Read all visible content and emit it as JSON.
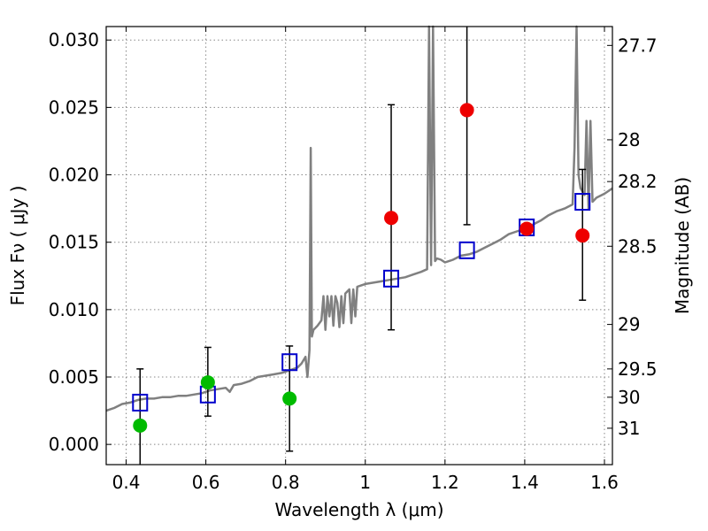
{
  "chart_data": {
    "type": "scatter",
    "xlabel": "Wavelength  λ (μm)",
    "ylabel": "Flux  Fν  ( μJy )",
    "ylabel_right": "Magnitude (AB)",
    "xlim": [
      0.35,
      1.62
    ],
    "ylim": [
      -0.0015,
      0.031
    ],
    "grid": true,
    "x_ticks": [
      {
        "value": 0.4,
        "label": "0.4"
      },
      {
        "value": 0.6,
        "label": "0.6"
      },
      {
        "value": 0.8,
        "label": "0.8"
      },
      {
        "value": 1.0,
        "label": "1"
      },
      {
        "value": 1.2,
        "label": "1.2"
      },
      {
        "value": 1.4,
        "label": "1.4"
      },
      {
        "value": 1.6,
        "label": "1.6"
      }
    ],
    "y_ticks": [
      {
        "value": 0.0,
        "label": "0.000"
      },
      {
        "value": 0.005,
        "label": "0.005"
      },
      {
        "value": 0.01,
        "label": "0.010"
      },
      {
        "value": 0.015,
        "label": "0.015"
      },
      {
        "value": 0.02,
        "label": "0.020"
      },
      {
        "value": 0.025,
        "label": "0.025"
      },
      {
        "value": 0.03,
        "label": "0.030"
      }
    ],
    "right_ticks": [
      {
        "flux": 0.0296,
        "label": "27.7"
      },
      {
        "flux": 0.0226,
        "label": "28"
      },
      {
        "flux": 0.0195,
        "label": "28.2"
      },
      {
        "flux": 0.0147,
        "label": "28.5"
      },
      {
        "flux": 0.0089,
        "label": "29"
      },
      {
        "flux": 0.0056,
        "label": "29.5"
      },
      {
        "flux": 0.0035,
        "label": "30"
      },
      {
        "flux": 0.0012,
        "label": "31"
      }
    ],
    "colors": {
      "spectrum": "#808080",
      "green": "#00bb00",
      "red": "#ee0000",
      "model_square": "#0000cc",
      "errorbar": "#000000",
      "grid": "#888888"
    },
    "model_spectrum": [
      [
        0.35,
        0.0025
      ],
      [
        0.37,
        0.0027
      ],
      [
        0.39,
        0.003
      ],
      [
        0.41,
        0.0031
      ],
      [
        0.43,
        0.0033
      ],
      [
        0.45,
        0.0034
      ],
      [
        0.47,
        0.0034
      ],
      [
        0.49,
        0.0035
      ],
      [
        0.51,
        0.0035
      ],
      [
        0.53,
        0.0036
      ],
      [
        0.55,
        0.0036
      ],
      [
        0.57,
        0.0037
      ],
      [
        0.59,
        0.0038
      ],
      [
        0.61,
        0.004
      ],
      [
        0.63,
        0.0041
      ],
      [
        0.65,
        0.0042
      ],
      [
        0.66,
        0.0039
      ],
      [
        0.67,
        0.0044
      ],
      [
        0.69,
        0.0045
      ],
      [
        0.71,
        0.0047
      ],
      [
        0.73,
        0.005
      ],
      [
        0.75,
        0.0051
      ],
      [
        0.77,
        0.0052
      ],
      [
        0.79,
        0.0053
      ],
      [
        0.81,
        0.0055
      ],
      [
        0.83,
        0.0057
      ],
      [
        0.84,
        0.006
      ],
      [
        0.85,
        0.0065
      ],
      [
        0.855,
        0.005
      ],
      [
        0.86,
        0.007
      ],
      [
        0.863,
        0.022
      ],
      [
        0.866,
        0.008
      ],
      [
        0.87,
        0.0085
      ],
      [
        0.88,
        0.0088
      ],
      [
        0.89,
        0.0092
      ],
      [
        0.895,
        0.011
      ],
      [
        0.9,
        0.0085
      ],
      [
        0.905,
        0.011
      ],
      [
        0.91,
        0.0095
      ],
      [
        0.915,
        0.011
      ],
      [
        0.92,
        0.0088
      ],
      [
        0.925,
        0.011
      ],
      [
        0.93,
        0.0105
      ],
      [
        0.935,
        0.0087
      ],
      [
        0.94,
        0.011
      ],
      [
        0.945,
        0.009
      ],
      [
        0.95,
        0.0112
      ],
      [
        0.96,
        0.0115
      ],
      [
        0.965,
        0.009
      ],
      [
        0.97,
        0.0115
      ],
      [
        0.975,
        0.0095
      ],
      [
        0.98,
        0.0117
      ],
      [
        0.99,
        0.0118
      ],
      [
        1.0,
        0.0119
      ],
      [
        1.02,
        0.012
      ],
      [
        1.04,
        0.0121
      ],
      [
        1.06,
        0.0122
      ],
      [
        1.08,
        0.0123
      ],
      [
        1.1,
        0.0124
      ],
      [
        1.12,
        0.0126
      ],
      [
        1.14,
        0.0128
      ],
      [
        1.155,
        0.013
      ],
      [
        1.16,
        0.034
      ],
      [
        1.165,
        0.0133
      ],
      [
        1.17,
        0.034
      ],
      [
        1.175,
        0.0136
      ],
      [
        1.18,
        0.0138
      ],
      [
        1.19,
        0.0137
      ],
      [
        1.2,
        0.0135
      ],
      [
        1.22,
        0.0137
      ],
      [
        1.24,
        0.014
      ],
      [
        1.26,
        0.0141
      ],
      [
        1.28,
        0.0143
      ],
      [
        1.3,
        0.0146
      ],
      [
        1.32,
        0.0149
      ],
      [
        1.34,
        0.0152
      ],
      [
        1.36,
        0.0156
      ],
      [
        1.38,
        0.0158
      ],
      [
        1.4,
        0.016
      ],
      [
        1.42,
        0.0163
      ],
      [
        1.44,
        0.0166
      ],
      [
        1.46,
        0.017
      ],
      [
        1.48,
        0.0173
      ],
      [
        1.5,
        0.0175
      ],
      [
        1.52,
        0.0178
      ],
      [
        1.525,
        0.022
      ],
      [
        1.53,
        0.031
      ],
      [
        1.535,
        0.02
      ],
      [
        1.54,
        0.019
      ],
      [
        1.55,
        0.0185
      ],
      [
        1.555,
        0.024
      ],
      [
        1.56,
        0.0175
      ],
      [
        1.565,
        0.024
      ],
      [
        1.57,
        0.018
      ],
      [
        1.58,
        0.0183
      ],
      [
        1.6,
        0.0186
      ],
      [
        1.62,
        0.019
      ]
    ],
    "green_points": [
      {
        "x": 0.435,
        "y": 0.0014,
        "err_low": null,
        "err_high": 0.0056
      },
      {
        "x": 0.605,
        "y": 0.0046,
        "err_low": 0.0021,
        "err_high": 0.0072
      },
      {
        "x": 0.81,
        "y": 0.0034,
        "err_low": -0.0005,
        "err_high": 0.0073
      }
    ],
    "red_points": [
      {
        "x": 1.065,
        "y": 0.0168,
        "err_low": 0.0085,
        "err_high": 0.0252
      },
      {
        "x": 1.255,
        "y": 0.0248,
        "err_low": 0.0163,
        "err_high": null
      },
      {
        "x": 1.405,
        "y": 0.016,
        "err_low": null,
        "err_high": null
      },
      {
        "x": 1.545,
        "y": 0.0155,
        "err_low": 0.0107,
        "err_high": 0.0204
      }
    ],
    "model_squares": [
      {
        "x": 0.435,
        "y": 0.0031
      },
      {
        "x": 0.605,
        "y": 0.0037
      },
      {
        "x": 0.81,
        "y": 0.0061
      },
      {
        "x": 1.065,
        "y": 0.0123
      },
      {
        "x": 1.255,
        "y": 0.0144
      },
      {
        "x": 1.405,
        "y": 0.0161
      },
      {
        "x": 1.545,
        "y": 0.018
      }
    ]
  }
}
